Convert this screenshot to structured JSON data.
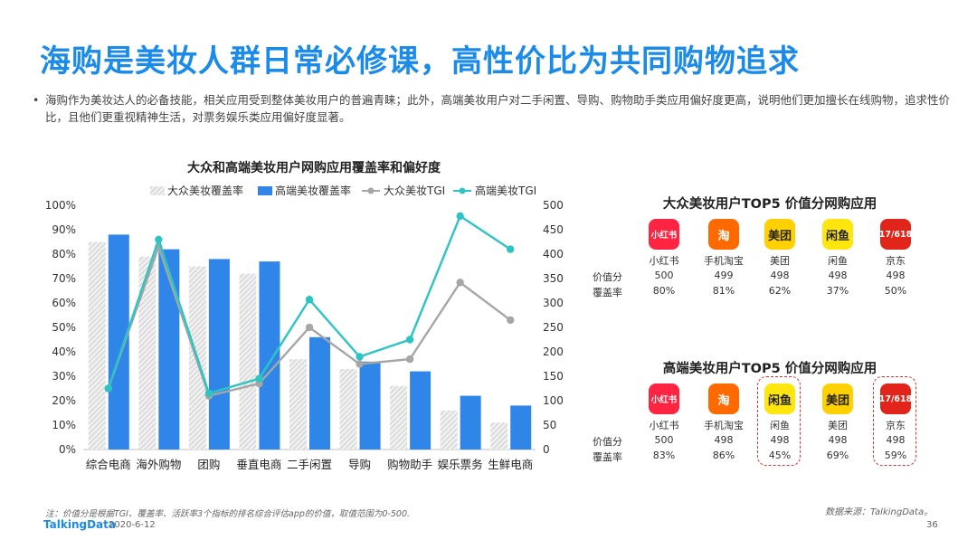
{
  "page": {
    "title": "海购是美妆人群日常必修课，高性价比为共同购物追求",
    "desc": "海购作为美妆达人的必备技能，相关应用受到整体美妆用户的普遍青睐；此外，高端美妆用户对二手闲置、导购、购物助手类应用偏好度更高，说明他们更加擅长在线购物，追求性价比，且他们更重视精神生活，对票务娱乐类应用偏好度显著。",
    "bullet": "•",
    "note": "注：价值分是根据TGI、覆盖率、活跃率3个指标的排名综合评估app的价值，取值范围为0-500.",
    "source": "数据来源：TalkingData。",
    "logo": "TalkingData",
    "date": "2020-6-12",
    "page_number": "36"
  },
  "colors": {
    "accent": "#1a8be8",
    "bar_mass": "#d0d0d0",
    "bar_high": "#2f86e8",
    "line_mass": "#a6a6a6",
    "line_high": "#2ec4c4",
    "highlight": "#e03030"
  },
  "chart_data": {
    "type": "bar",
    "title": "大众和高端美妆用户网购应用覆盖率和偏好度",
    "categories": [
      "综合电商",
      "海外购物",
      "团购",
      "垂直电商",
      "二手闲置",
      "导购",
      "购物助手",
      "娱乐票务",
      "生鲜电商"
    ],
    "series": [
      {
        "name": "大众美妆覆盖率",
        "kind": "bar",
        "axis": "left",
        "values": [
          85,
          79,
          75,
          72,
          37,
          33,
          26,
          16,
          11
        ]
      },
      {
        "name": "高端美妆覆盖率",
        "kind": "bar",
        "axis": "left",
        "values": [
          88,
          82,
          78,
          77,
          46,
          36,
          32,
          22,
          18
        ]
      },
      {
        "name": "大众美妆TGI",
        "kind": "line",
        "axis": "right",
        "values": [
          125,
          415,
          110,
          135,
          250,
          175,
          185,
          342,
          265
        ]
      },
      {
        "name": "高端美妆TGI",
        "kind": "line",
        "axis": "right",
        "values": [
          125,
          430,
          115,
          145,
          307,
          190,
          225,
          478,
          410
        ]
      }
    ],
    "y_left": {
      "min": 0,
      "max": 100,
      "step": 10,
      "ticks": [
        "0%",
        "10%",
        "20%",
        "30%",
        "40%",
        "50%",
        "60%",
        "70%",
        "80%",
        "90%",
        "100%"
      ]
    },
    "y_right": {
      "min": 0,
      "max": 500,
      "step": 50,
      "ticks": [
        "0",
        "50",
        "100",
        "150",
        "200",
        "250",
        "300",
        "350",
        "400",
        "450",
        "500"
      ]
    },
    "legend_position": "top"
  },
  "panel_mass": {
    "title": "大众美妆用户TOP5 价值分网购应用",
    "row_labels": [
      "价值分",
      "覆盖率"
    ],
    "apps": [
      {
        "name": "小红书",
        "icon": "小红书",
        "bg": "#ff2442",
        "fg": "#ffffff",
        "score": "500",
        "coverage": "80%"
      },
      {
        "name": "手机淘宝",
        "icon": "淘",
        "bg": "#ff6a00",
        "fg": "#ffffff",
        "score": "499",
        "coverage": "81%"
      },
      {
        "name": "美团",
        "icon": "美团",
        "bg": "#ffd100",
        "fg": "#222222",
        "score": "498",
        "coverage": "62%"
      },
      {
        "name": "闲鱼",
        "icon": "闲鱼",
        "bg": "#ffe60f",
        "fg": "#222222",
        "score": "498",
        "coverage": "37%"
      },
      {
        "name": "京东",
        "icon": "17/618",
        "bg": "#e1251b",
        "fg": "#ffffff",
        "score": "498",
        "coverage": "50%"
      }
    ]
  },
  "panel_high": {
    "title": "高端美妆用户TOP5 价值分网购应用",
    "row_labels": [
      "价值分",
      "覆盖率"
    ],
    "apps": [
      {
        "name": "小红书",
        "icon": "小红书",
        "bg": "#ff2442",
        "fg": "#ffffff",
        "score": "500",
        "coverage": "83%",
        "highlight": false
      },
      {
        "name": "手机淘宝",
        "icon": "淘",
        "bg": "#ff6a00",
        "fg": "#ffffff",
        "score": "498",
        "coverage": "86%",
        "highlight": false
      },
      {
        "name": "闲鱼",
        "icon": "闲鱼",
        "bg": "#ffe60f",
        "fg": "#222222",
        "score": "498",
        "coverage": "45%",
        "highlight": true
      },
      {
        "name": "美团",
        "icon": "美团",
        "bg": "#ffd100",
        "fg": "#222222",
        "score": "498",
        "coverage": "69%",
        "highlight": false
      },
      {
        "name": "京东",
        "icon": "17/618",
        "bg": "#e1251b",
        "fg": "#ffffff",
        "score": "498",
        "coverage": "59%",
        "highlight": true
      }
    ]
  }
}
